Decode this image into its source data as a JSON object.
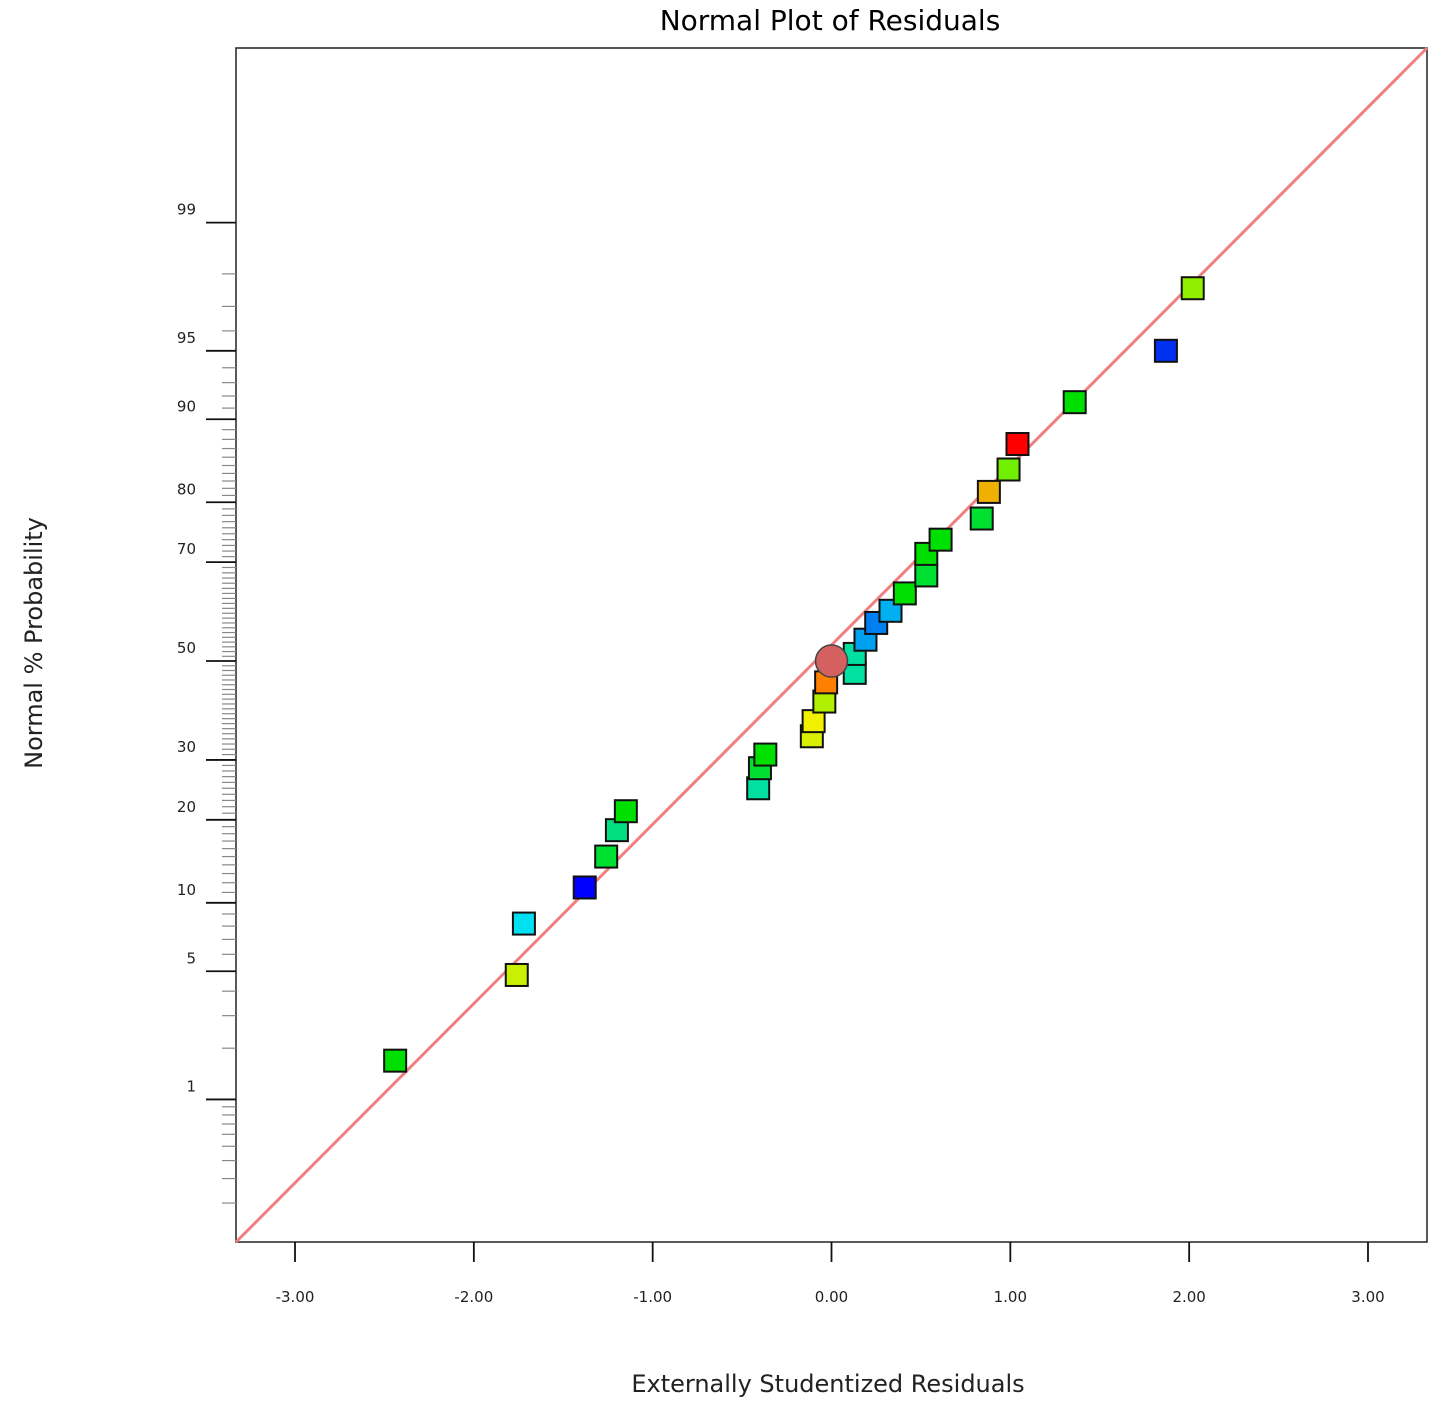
{
  "chart_data": {
    "type": "scatter",
    "title": "Normal Plot of Residuals",
    "xlabel": "Externally Studentized Residuals",
    "ylabel": "Normal % Probability",
    "xlim": [
      -3.33,
      3.33
    ],
    "ylim_z": [
      -3.08,
      3.25
    ],
    "y_scale": "normal-probability",
    "x_ticks": [
      {
        "value": -3,
        "label": "-3.00"
      },
      {
        "value": -2,
        "label": "-2.00"
      },
      {
        "value": -1,
        "label": "-1.00"
      },
      {
        "value": 0,
        "label": "0.00"
      },
      {
        "value": 1,
        "label": "1.00"
      },
      {
        "value": 2,
        "label": "2.00"
      },
      {
        "value": 3,
        "label": "3.00"
      }
    ],
    "y_ticks": [
      {
        "value": 1,
        "label": "1"
      },
      {
        "value": 5,
        "label": "5"
      },
      {
        "value": 10,
        "label": "10"
      },
      {
        "value": 20,
        "label": "20"
      },
      {
        "value": 30,
        "label": "30"
      },
      {
        "value": 50,
        "label": "50"
      },
      {
        "value": 70,
        "label": "70"
      },
      {
        "value": 80,
        "label": "80"
      },
      {
        "value": 90,
        "label": "90"
      },
      {
        "value": 95,
        "label": "95"
      },
      {
        "value": 99,
        "label": "99"
      }
    ],
    "y_minor_ticks": [
      0.2,
      0.3,
      0.4,
      0.5,
      0.6,
      0.7,
      0.8,
      0.9,
      2,
      3,
      4,
      6,
      7,
      8,
      9,
      11,
      12,
      13,
      14,
      15,
      16,
      17,
      18,
      19,
      21,
      22,
      23,
      24,
      25,
      26,
      27,
      28,
      29,
      31,
      32,
      33,
      34,
      35,
      36,
      37,
      38,
      39,
      40,
      41,
      42,
      43,
      44,
      45,
      46,
      47,
      48,
      49,
      51,
      52,
      53,
      54,
      55,
      56,
      57,
      58,
      59,
      60,
      61,
      62,
      63,
      64,
      65,
      66,
      67,
      68,
      69,
      71,
      72,
      73,
      74,
      75,
      76,
      77,
      78,
      79,
      81,
      82,
      83,
      84,
      85,
      86,
      87,
      88,
      89,
      91,
      92,
      93,
      94,
      96,
      97,
      98
    ],
    "reference_line": {
      "x": [
        -3.33,
        3.33
      ],
      "z": [
        -3.08,
        3.25
      ],
      "color": "#f08080"
    },
    "points": [
      {
        "x": -2.44,
        "p": 1.7,
        "color": "#00e000",
        "shape": "square"
      },
      {
        "x": -1.76,
        "p": 4.8,
        "color": "#c8f000",
        "shape": "square"
      },
      {
        "x": -1.72,
        "p": 8.2,
        "color": "#00e0f0",
        "shape": "square"
      },
      {
        "x": -1.38,
        "p": 11.5,
        "color": "#0000ff",
        "shape": "square"
      },
      {
        "x": -1.26,
        "p": 15.0,
        "color": "#00e030",
        "shape": "square"
      },
      {
        "x": -1.2,
        "p": 18.5,
        "color": "#00e080",
        "shape": "square"
      },
      {
        "x": -1.15,
        "p": 21.3,
        "color": "#00e000",
        "shape": "square"
      },
      {
        "x": -0.41,
        "p": 25.0,
        "color": "#00e0a0",
        "shape": "square"
      },
      {
        "x": -0.4,
        "p": 28.5,
        "color": "#00e030",
        "shape": "square"
      },
      {
        "x": -0.37,
        "p": 31.0,
        "color": "#00e000",
        "shape": "square"
      },
      {
        "x": -0.11,
        "p": 34.5,
        "color": "#d8f000",
        "shape": "square"
      },
      {
        "x": -0.1,
        "p": 37.5,
        "color": "#f0f000",
        "shape": "square"
      },
      {
        "x": -0.04,
        "p": 41.5,
        "color": "#b0f000",
        "shape": "square"
      },
      {
        "x": -0.03,
        "p": 45.5,
        "color": "#ff8000",
        "shape": "square"
      },
      {
        "x": 0.13,
        "p": 47.5,
        "color": "#00e0a0",
        "shape": "square"
      },
      {
        "x": 0.13,
        "p": 51.5,
        "color": "#00e0a0",
        "shape": "square"
      },
      {
        "x": 0.0,
        "p": 50.0,
        "color": "#d46060",
        "shape": "circle"
      },
      {
        "x": 0.19,
        "p": 54.5,
        "color": "#00a0f0",
        "shape": "square"
      },
      {
        "x": 0.25,
        "p": 58.0,
        "color": "#0080f0",
        "shape": "square"
      },
      {
        "x": 0.33,
        "p": 60.5,
        "color": "#00b0f0",
        "shape": "square"
      },
      {
        "x": 0.41,
        "p": 64.0,
        "color": "#00e000",
        "shape": "square"
      },
      {
        "x": 0.53,
        "p": 67.5,
        "color": "#00e030",
        "shape": "square"
      },
      {
        "x": 0.53,
        "p": 71.5,
        "color": "#00e000",
        "shape": "square"
      },
      {
        "x": 0.61,
        "p": 74.0,
        "color": "#00e000",
        "shape": "square"
      },
      {
        "x": 0.84,
        "p": 77.5,
        "color": "#00e030",
        "shape": "square"
      },
      {
        "x": 0.88,
        "p": 81.5,
        "color": "#f0b000",
        "shape": "square"
      },
      {
        "x": 0.99,
        "p": 84.5,
        "color": "#70f000",
        "shape": "square"
      },
      {
        "x": 1.04,
        "p": 87.5,
        "color": "#ff0000",
        "shape": "square"
      },
      {
        "x": 1.36,
        "p": 91.5,
        "color": "#00e000",
        "shape": "square"
      },
      {
        "x": 1.87,
        "p": 95.0,
        "color": "#0030f0",
        "shape": "square"
      },
      {
        "x": 2.02,
        "p": 97.6,
        "color": "#90f000",
        "shape": "square"
      }
    ]
  }
}
